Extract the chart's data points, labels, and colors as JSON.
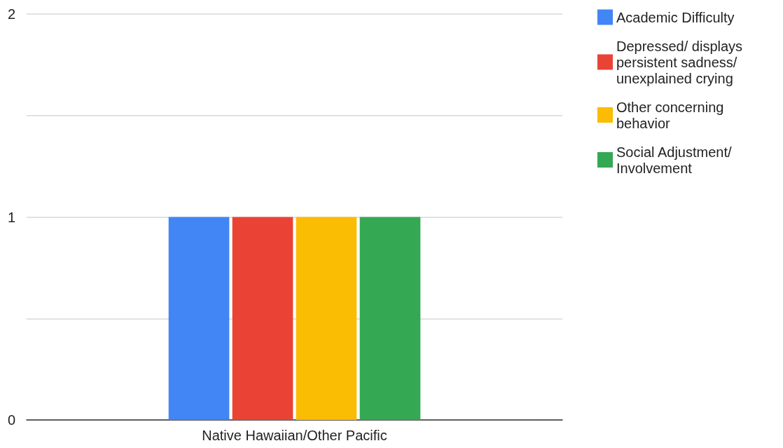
{
  "chart_data": {
    "type": "bar",
    "categories": [
      "Native Hawaiian/Other Pacific"
    ],
    "series": [
      {
        "name": "Academic Difficulty",
        "color": "#4285f4",
        "values": [
          1
        ]
      },
      {
        "name": "Depressed/ displays persistent sadness/ unexplained crying",
        "color": "#ea4335",
        "values": [
          1
        ]
      },
      {
        "name": "Other concerning behavior",
        "color": "#fbbc04",
        "values": [
          1
        ]
      },
      {
        "name": "Social Adjustment/ Involvement",
        "color": "#34a853",
        "values": [
          1
        ]
      }
    ],
    "ylim": [
      0,
      2
    ],
    "yticks": [
      0,
      {
        "value": 0.5,
        "label": null
      },
      1,
      {
        "value": 1.5,
        "label": null
      },
      2
    ],
    "grid": true,
    "legend": "top right"
  }
}
